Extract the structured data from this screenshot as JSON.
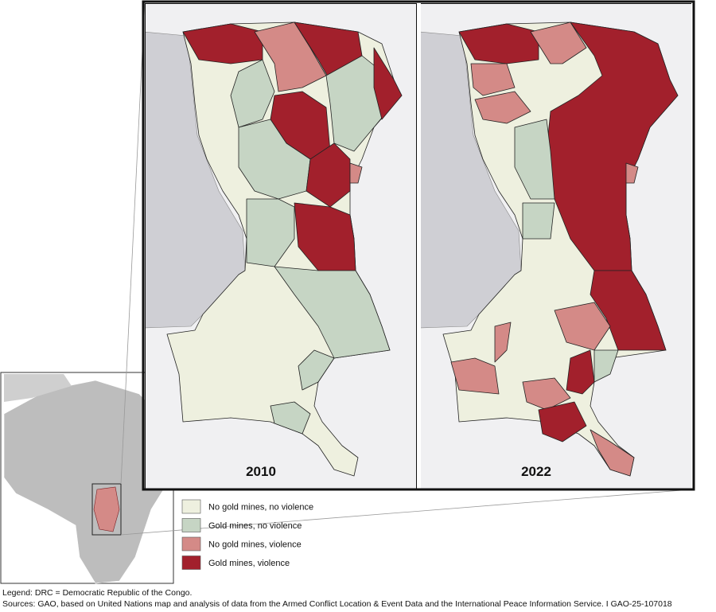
{
  "panels": [
    {
      "label": "2010"
    },
    {
      "label": "2022"
    }
  ],
  "legend": {
    "items": [
      {
        "label": "No gold mines, no violence",
        "color": "#eef0df"
      },
      {
        "label": "Gold mines, no violence",
        "color": "#c6d5c4"
      },
      {
        "label": "No gold mines, violence",
        "color": "#d48a87"
      },
      {
        "label": "Gold mines, violence",
        "color": "#a2202c"
      }
    ]
  },
  "footer": {
    "legend_note": "Legend: DRC = Democratic Republic of the Congo.",
    "sources": "Sources: GAO, based on United Nations map and analysis of data from the Armed Conflict Location & Event Data and the International Peace Information Service.  I  GAO-25-107018"
  }
}
